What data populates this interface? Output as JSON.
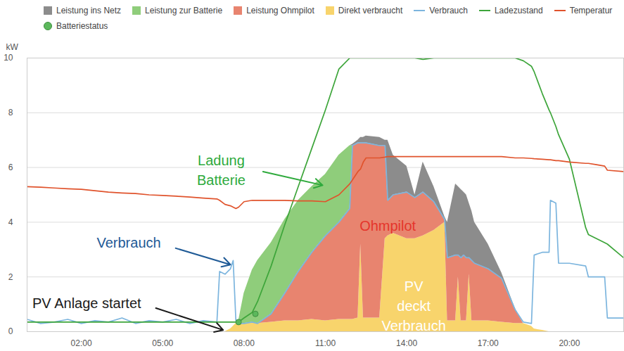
{
  "chart_data": {
    "type": "area",
    "stacked": true,
    "grid": true,
    "y_label": "kW",
    "xlim": [
      0,
      22
    ],
    "xticks": [
      {
        "value": 2,
        "label": "02:00"
      },
      {
        "value": 5,
        "label": "05:00"
      },
      {
        "value": 8,
        "label": "08:00"
      },
      {
        "value": 11,
        "label": "11:00"
      },
      {
        "value": 14,
        "label": "14:00"
      },
      {
        "value": 17,
        "label": "17:00"
      },
      {
        "value": 20,
        "label": "20:00"
      }
    ],
    "ylim": [
      0,
      10
    ],
    "yticks": [
      0,
      2,
      4,
      6,
      8,
      10
    ],
    "x": [
      0,
      0.5,
      1,
      1.5,
      2,
      2.5,
      3,
      3.5,
      4,
      4.5,
      5,
      5.5,
      6,
      6.5,
      7,
      7.1,
      7.3,
      7.5,
      7.6,
      7.7,
      7.8,
      8,
      8.3,
      8.5,
      9,
      9.5,
      10,
      10.5,
      11,
      11.5,
      11.9,
      12,
      12.2,
      12.3,
      12.4,
      12.5,
      13,
      13.2,
      13.3,
      13.5,
      14,
      14.3,
      14.6,
      15,
      15.4,
      15.5,
      15.8,
      15.9,
      16,
      16.1,
      16.2,
      16.3,
      16.4,
      16.5,
      17,
      17.5,
      18,
      18.3,
      18.6,
      18.7,
      19,
      19.25,
      19.3,
      19.5,
      19.6,
      20,
      20.6,
      20.7,
      21,
      21.3,
      21.4,
      22
    ],
    "series": [
      {
        "name": "Leistung ins Netz",
        "type": "area",
        "color": "#8c8c8c",
        "values": [
          0,
          0,
          0,
          0,
          0,
          0,
          0,
          0,
          0,
          0,
          0,
          0,
          0,
          0,
          0,
          0,
          0,
          0,
          0,
          0,
          0,
          0,
          0,
          0,
          0,
          0,
          0,
          0,
          0,
          0,
          0,
          0.05,
          0.1,
          0.2,
          0.2,
          0.25,
          0.3,
          0.2,
          2.2,
          1.45,
          0.95,
          0.1,
          1.1,
          0.55,
          0.1,
          1.3,
          2.6,
          2.5,
          2.5,
          2.3,
          2.3,
          2.0,
          1.8,
          1.5,
          0.9,
          0.2,
          0.05,
          0,
          0,
          0,
          0,
          0,
          0,
          0,
          0,
          0,
          0,
          0,
          0,
          0,
          0,
          0
        ]
      },
      {
        "name": "Leistung zur Batterie",
        "type": "area",
        "color": "#8fcd7b",
        "values": [
          0,
          0,
          0,
          0,
          0,
          0,
          0,
          0,
          0,
          0,
          0,
          0,
          0,
          0,
          0,
          0,
          0,
          0,
          0,
          0,
          0.1,
          1.1,
          1.9,
          2.3,
          2.6,
          2.7,
          2.6,
          2.4,
          2.25,
          2.45,
          2.3,
          0,
          0,
          0,
          0,
          0,
          0,
          0,
          0,
          0,
          0,
          0,
          0,
          0,
          0,
          0,
          0,
          0,
          0,
          0,
          0,
          0,
          0,
          0,
          0,
          0,
          0,
          0,
          0,
          0,
          0,
          0,
          0,
          0,
          0,
          0,
          0,
          0,
          0,
          0,
          0,
          0
        ]
      },
      {
        "name": "Leistung Ohmpilot",
        "type": "area",
        "color": "#e8846f",
        "values": [
          0,
          0,
          0,
          0,
          0,
          0,
          0,
          0,
          0,
          0,
          0,
          0,
          0,
          0,
          0,
          0,
          0,
          0,
          0,
          0,
          0,
          0,
          0,
          0,
          0.3,
          1.0,
          1.8,
          2.45,
          3.1,
          3.55,
          4.05,
          6.35,
          6.4,
          3.7,
          6.4,
          6.4,
          6.3,
          3.4,
          1.3,
          1.4,
          1.7,
          1.5,
          1.6,
          1.05,
          0.1,
          2.3,
          2.4,
          0.8,
          2.3,
          2.4,
          2.3,
          0.6,
          2.2,
          2.1,
          1.9,
          1.6,
          0.5,
          0,
          0,
          0,
          0,
          0,
          0,
          0,
          0,
          0,
          0,
          0,
          0,
          0,
          0,
          0
        ]
      },
      {
        "name": "Direkt verbraucht",
        "type": "area",
        "color": "#f8d46c",
        "values": [
          0,
          0,
          0,
          0,
          0,
          0,
          0,
          0,
          0,
          0,
          0,
          0,
          0,
          0,
          0,
          0,
          0,
          0.1,
          0.2,
          0.3,
          0.3,
          0.3,
          0.35,
          0.3,
          0.35,
          0.4,
          0.4,
          0.45,
          0.4,
          0.45,
          0.45,
          0.45,
          0.5,
          3.2,
          0.5,
          0.5,
          0.5,
          3.4,
          3.5,
          3.6,
          3.4,
          3.4,
          3.5,
          3.7,
          4.0,
          0.4,
          0.4,
          2.0,
          0.4,
          0.4,
          0.4,
          2.1,
          0.4,
          0.4,
          0.4,
          0.35,
          0.3,
          0.3,
          0.2,
          0.1,
          0.05,
          0,
          0,
          0,
          0,
          0,
          0,
          0,
          0,
          0,
          0,
          0
        ]
      },
      {
        "name": "Verbrauch",
        "type": "line",
        "color": "#7cb5de",
        "line_style": "solid",
        "values": [
          0.45,
          0.3,
          0.35,
          0.45,
          0.3,
          0.4,
          0.35,
          0.5,
          0.3,
          0.4,
          0.35,
          0.45,
          0.3,
          0.4,
          0.35,
          2.2,
          2.1,
          2.3,
          2.6,
          0.4,
          0.3,
          0.3,
          0.35,
          0.3,
          0.65,
          1.4,
          2.2,
          2.9,
          3.5,
          4.0,
          4.5,
          6.8,
          6.9,
          6.9,
          6.9,
          6.9,
          6.8,
          6.8,
          4.8,
          5.0,
          5.1,
          4.9,
          5.1,
          4.75,
          4.1,
          2.7,
          2.8,
          2.8,
          2.7,
          2.8,
          2.7,
          2.7,
          2.6,
          2.5,
          2.3,
          1.95,
          0.8,
          0.35,
          0.3,
          2.8,
          2.9,
          2.9,
          4.8,
          4.7,
          2.5,
          2.5,
          2.4,
          2.0,
          2.0,
          2.0,
          0.5,
          0.5
        ]
      },
      {
        "name": "Ladezustand",
        "type": "line",
        "color": "#3da53a",
        "line_style": "solid",
        "values": [
          0.35,
          0.35,
          0.35,
          0.35,
          0.35,
          0.35,
          0.35,
          0.35,
          0.35,
          0.35,
          0.35,
          0.35,
          0.35,
          0.35,
          0.35,
          0.35,
          0.35,
          0.35,
          0.35,
          0.35,
          0.35,
          0.5,
          0.7,
          1.1,
          2.4,
          3.9,
          5.3,
          6.7,
          8.1,
          9.6,
          10,
          10,
          10,
          10,
          10,
          10,
          10,
          10,
          10,
          10,
          10,
          10,
          9.95,
          10,
          10,
          10,
          10,
          10,
          10,
          10,
          10,
          10,
          10,
          10,
          10,
          10,
          10,
          9.9,
          9.7,
          9.5,
          8.7,
          8.1,
          8.0,
          7.5,
          7.2,
          6.3,
          3.8,
          3.55,
          3.4,
          3.25,
          3.2,
          2.7
        ]
      },
      {
        "name": "Temperatur",
        "type": "line",
        "color": "#e0532c",
        "line_style": "solid",
        "values": [
          5.3,
          5.28,
          5.25,
          5.22,
          5.2,
          5.15,
          5.1,
          5.07,
          5.05,
          5.0,
          4.98,
          4.95,
          4.92,
          4.88,
          4.85,
          4.8,
          4.65,
          4.6,
          4.55,
          4.5,
          4.55,
          4.75,
          4.8,
          4.8,
          4.8,
          4.8,
          4.78,
          4.78,
          4.75,
          5.0,
          5.4,
          5.55,
          5.85,
          5.95,
          6.2,
          6.35,
          6.35,
          6.38,
          6.4,
          6.4,
          6.4,
          6.4,
          6.4,
          6.4,
          6.4,
          6.4,
          6.4,
          6.4,
          6.4,
          6.4,
          6.4,
          6.4,
          6.4,
          6.4,
          6.4,
          6.4,
          6.35,
          6.35,
          6.33,
          6.32,
          6.3,
          6.28,
          6.28,
          6.25,
          6.25,
          6.2,
          6.15,
          6.15,
          6.1,
          6.05,
          5.9,
          5.85
        ]
      },
      {
        "name": "Batteriestatus",
        "type": "scatter",
        "color": "#5cb85c",
        "marker": "circle",
        "x": [
          7.8,
          8.42
        ],
        "values": [
          0.35,
          0.65
        ]
      }
    ],
    "annotations": [
      {
        "text": "Ladung\nBatterie",
        "color": "#2eaa3c",
        "x": 7.16,
        "y": 5.95
      },
      {
        "text": "Verbrauch",
        "color": "#1f5a96",
        "x": 3.75,
        "y": 3.3
      },
      {
        "text": "PV Anlage startet",
        "color": "#1a1a1a",
        "x": 2.2,
        "y": 1.1
      },
      {
        "text": "Ohmpilot",
        "color": "#e5352b",
        "x": 13.3,
        "y": 3.93
      },
      {
        "text": "PV\ndeckt\nVerbrauch",
        "color": "#ffffff",
        "x": 14.26,
        "y": 1.0
      }
    ]
  }
}
